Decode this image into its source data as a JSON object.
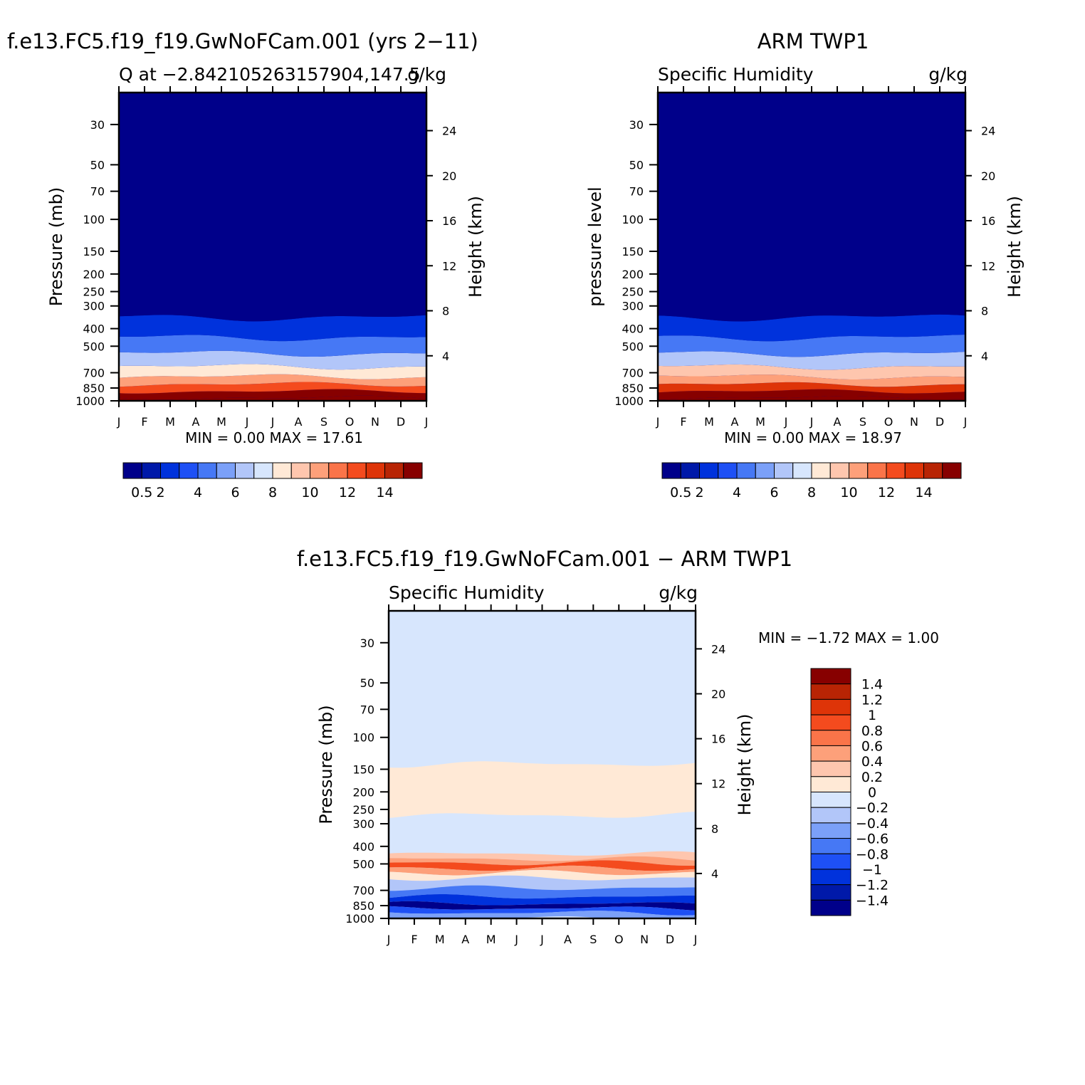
{
  "chart_data": [
    {
      "type": "heatmap",
      "title": "f.e13.FC5.f19_f19.GwNoFCam.001 (yrs 2−11)",
      "left_string": "Q at −2.842105263157904,147.5",
      "right_string": "g/kg",
      "ylabel": "Pressure (mb)",
      "ylabel_right": "Height (km)",
      "x_tick_labels": [
        "J",
        "F",
        "M",
        "A",
        "M",
        "J",
        "J",
        "A",
        "S",
        "O",
        "N",
        "D",
        "J"
      ],
      "y_ticks": [
        30,
        50,
        70,
        100,
        150,
        200,
        250,
        300,
        400,
        500,
        700,
        850,
        1000
      ],
      "y_right_ticks": [
        24,
        20,
        16,
        12,
        8,
        4
      ],
      "ylim": [
        1000,
        20
      ],
      "y_scale": "log",
      "stats_text": "MIN =    0.00  MAX =    17.61",
      "min": 0.0,
      "max": 17.61,
      "colorbar": {
        "orientation": "horizontal",
        "labels": [
          "0.5",
          "2",
          "4",
          "6",
          "8",
          "10",
          "12",
          "14"
        ],
        "colors": [
          "#00008a",
          "#0019a9",
          "#0032dc",
          "#1e50f5",
          "#4678f5",
          "#7ba0f8",
          "#b2c6f9",
          "#d7e6fd",
          "#ffe9d6",
          "#fec6ae",
          "#fda07a",
          "#fa7449",
          "#f44b1e",
          "#de3408",
          "#b82404",
          "#870000"
        ]
      },
      "profile": {
        "levels": [
          1000,
          925,
          850,
          775,
          700,
          600,
          500,
          400,
          300
        ],
        "values": [
          17.2,
          14.6,
          11.8,
          9.1,
          7.6,
          5.0,
          3.1,
          1.3,
          0.4
        ]
      }
    },
    {
      "type": "heatmap",
      "title": "ARM TWP1",
      "left_string": "Specific Humidity",
      "right_string": "g/kg",
      "ylabel": "pressure level",
      "ylabel_right": "Height (km)",
      "x_tick_labels": [
        "J",
        "F",
        "M",
        "A",
        "M",
        "J",
        "J",
        "A",
        "S",
        "O",
        "N",
        "D",
        "J"
      ],
      "y_ticks": [
        30,
        50,
        70,
        100,
        150,
        200,
        250,
        300,
        400,
        500,
        700,
        850,
        1000
      ],
      "y_right_ticks": [
        24,
        20,
        16,
        12,
        8,
        4
      ],
      "ylim": [
        1000,
        20
      ],
      "y_scale": "log",
      "stats_text": "MIN =    0.00  MAX =    18.97",
      "min": 0.0,
      "max": 18.97,
      "colorbar": {
        "orientation": "horizontal",
        "labels": [
          "0.5",
          "2",
          "4",
          "6",
          "8",
          "10",
          "12",
          "14"
        ],
        "colors": [
          "#00008a",
          "#0019a9",
          "#0032dc",
          "#1e50f5",
          "#4678f5",
          "#7ba0f8",
          "#b2c6f9",
          "#d7e6fd",
          "#ffe9d6",
          "#fec6ae",
          "#fda07a",
          "#fa7449",
          "#f44b1e",
          "#de3408",
          "#b82404",
          "#870000"
        ]
      },
      "profile": {
        "levels": [
          1000,
          925,
          850,
          775,
          700,
          600,
          500,
          400,
          300
        ],
        "values": [
          18.6,
          15.8,
          12.4,
          9.8,
          8.0,
          5.3,
          3.0,
          1.2,
          0.4
        ]
      }
    },
    {
      "type": "heatmap",
      "title": "f.e13.FC5.f19_f19.GwNoFCam.001 − ARM TWP1",
      "left_string": "Specific Humidity",
      "right_string": "g/kg",
      "ylabel": "Pressure (mb)",
      "ylabel_right": "Height (km)",
      "x_tick_labels": [
        "J",
        "F",
        "M",
        "A",
        "M",
        "J",
        "J",
        "A",
        "S",
        "O",
        "N",
        "D",
        "J"
      ],
      "y_ticks": [
        30,
        50,
        70,
        100,
        150,
        200,
        250,
        300,
        400,
        500,
        700,
        850,
        1000
      ],
      "y_right_ticks": [
        24,
        20,
        16,
        12,
        8,
        4
      ],
      "ylim": [
        1000,
        20
      ],
      "y_scale": "log",
      "stats_text": "MIN =   −1.72  MAX =     1.00",
      "min": -1.72,
      "max": 1.0,
      "colorbar": {
        "orientation": "vertical",
        "labels": [
          "1.4",
          "1.2",
          "1",
          "0.8",
          "0.6",
          "0.4",
          "0.2",
          "0",
          "−0.2",
          "−0.4",
          "−0.6",
          "−0.8",
          "−1",
          "−1.2",
          "−1.4"
        ],
        "colors": [
          "#870000",
          "#b82404",
          "#de3408",
          "#f44b1e",
          "#fa7449",
          "#fda07a",
          "#fec6ae",
          "#ffe9d6",
          "#d7e6fd",
          "#b2c6f9",
          "#7ba0f8",
          "#4678f5",
          "#1e50f5",
          "#0032dc",
          "#0019a9",
          "#00008a"
        ]
      },
      "bands": [
        {
          "levels": [
            1000,
            140
          ],
          "value": -0.1
        },
        {
          "levels": [
            140,
            270
          ],
          "value": 0.1
        },
        {
          "levels": [
            270,
            440
          ],
          "value": -0.1
        },
        {
          "levels": [
            440,
            470
          ],
          "value": 0.3
        },
        {
          "levels": [
            470,
            495
          ],
          "value": 0.5
        },
        {
          "levels": [
            495,
            530
          ],
          "value": 0.9
        },
        {
          "levels": [
            530,
            560
          ],
          "value": 0.5
        },
        {
          "levels": [
            560,
            600
          ],
          "value": 0.1
        },
        {
          "levels": [
            600,
            680
          ],
          "value": -0.3
        },
        {
          "levels": [
            680,
            760
          ],
          "value": -0.7
        },
        {
          "levels": [
            760,
            830
          ],
          "value": -1.1
        },
        {
          "levels": [
            830,
            880
          ],
          "value": -1.5
        },
        {
          "levels": [
            880,
            930
          ],
          "value": -0.9
        },
        {
          "levels": [
            930,
            1000
          ],
          "value": -0.5
        }
      ]
    }
  ]
}
